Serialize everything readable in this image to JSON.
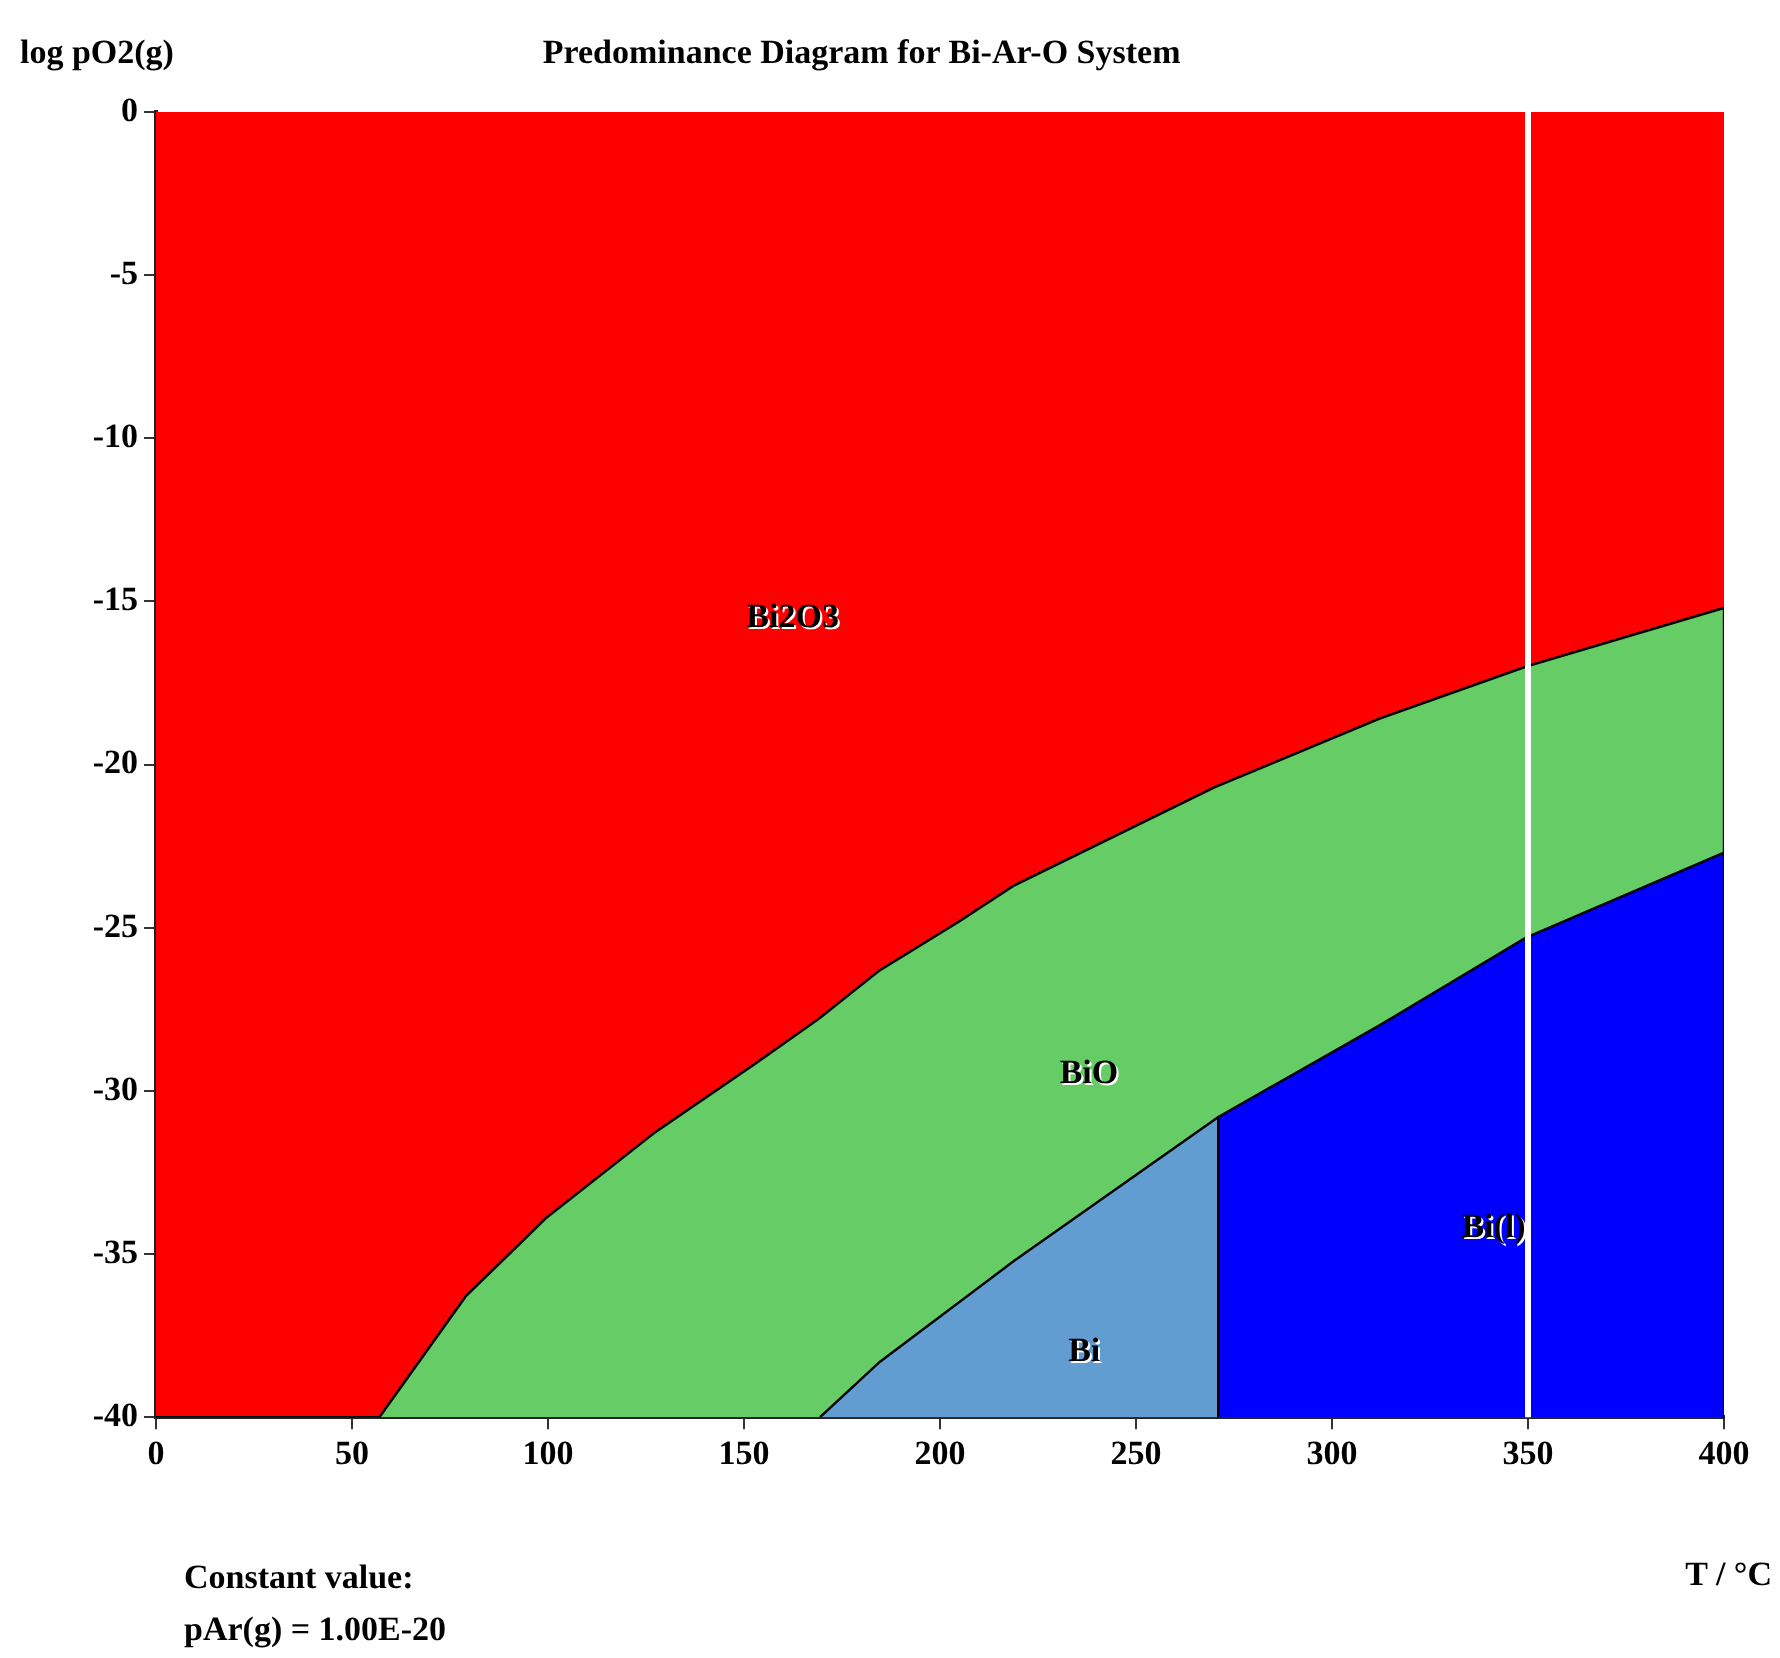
{
  "chart_data": {
    "type": "area",
    "title": "Predominance Diagram for Bi-Ar-O System",
    "xlabel": "T / °C",
    "ylabel": "log pO2(g)",
    "xlim": [
      0,
      400
    ],
    "xticks": [
      0,
      50,
      100,
      150,
      200,
      250,
      300,
      350,
      400
    ],
    "ylim": [
      -40,
      0
    ],
    "yticks": [
      0,
      -5,
      -10,
      -15,
      -20,
      -25,
      -30,
      -35,
      -40
    ],
    "grid": false,
    "legend": false,
    "series": [
      {
        "color": "#ff0000",
        "x": [
          0,
          57,
          79,
          99.5,
          127,
          152.5,
          169,
          184.7,
          205,
          219,
          270,
          312,
          349.5,
          400
        ],
        "values": [
          -40,
          -40,
          -36.3,
          -33.9,
          -31.3,
          -29.2,
          -27.8,
          -26.3,
          -24.8,
          -23.7,
          -20.7,
          -18.6,
          -17.0,
          -15.2
        ]
      },
      {
        "color": "#66cc66",
        "x": [
          57,
          79,
          99.5,
          127,
          152.5,
          169,
          184.7,
          205,
          219,
          270,
          312,
          349.5,
          400,
          400
        ],
        "values": [
          -40,
          -36.3,
          -33.9,
          -31.3,
          -29.2,
          -27.8,
          -26.3,
          -24.8,
          -23.7,
          -20.7,
          -18.6,
          -17.0,
          -15.2,
          -40
        ]
      },
      {
        "color": "#619dd1",
        "x": [
          169.4,
          184.7,
          219,
          271,
          271
        ],
        "values": [
          -40,
          -38.3,
          -35.2,
          -30.8,
          -40
        ]
      },
      {
        "color": "#0000ff",
        "x": [
          271,
          271,
          312,
          349.5,
          400,
          400
        ],
        "values": [
          -40,
          -30.8,
          -28.0,
          -25.3,
          -22.7,
          -40
        ]
      }
    ],
    "ref_lines": [
      {
        "axis": "x",
        "value": 350,
        "color": "#ffffff"
      }
    ],
    "annotations": [
      "Bi2O3",
      "BiO",
      "Bi",
      "Bi(l)",
      "Constant value:",
      "pAr(g) = 1.00E-20"
    ]
  }
}
